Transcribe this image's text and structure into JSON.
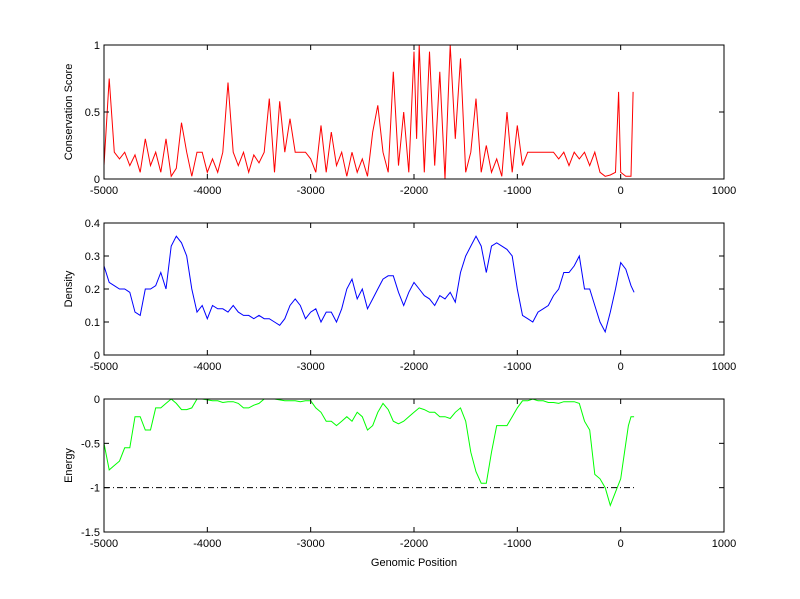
{
  "chart_data": [
    {
      "type": "line",
      "title": "",
      "xlabel": "",
      "ylabel": "Conservation Score",
      "xlim": [
        -5000,
        1000
      ],
      "ylim": [
        0,
        1
      ],
      "xticks": [
        -5000,
        -4000,
        -3000,
        -2000,
        -1000,
        0,
        1000
      ],
      "yticks": [
        0,
        0.5,
        1
      ],
      "ytick_labels": [
        "0",
        "0.5",
        "1"
      ],
      "color": "#ff0000",
      "series": [
        {
          "name": "conservation",
          "x": [
            -5000,
            -4950,
            -4900,
            -4850,
            -4800,
            -4750,
            -4700,
            -4650,
            -4600,
            -4550,
            -4500,
            -4450,
            -4400,
            -4350,
            -4300,
            -4250,
            -4200,
            -4150,
            -4100,
            -4050,
            -4000,
            -3950,
            -3900,
            -3850,
            -3800,
            -3750,
            -3700,
            -3650,
            -3600,
            -3550,
            -3500,
            -3450,
            -3400,
            -3350,
            -3300,
            -3250,
            -3200,
            -3150,
            -3100,
            -3050,
            -3000,
            -2950,
            -2900,
            -2850,
            -2800,
            -2750,
            -2700,
            -2650,
            -2600,
            -2550,
            -2500,
            -2450,
            -2400,
            -2350,
            -2300,
            -2250,
            -2200,
            -2150,
            -2100,
            -2050,
            -2000,
            -1975,
            -1950,
            -1900,
            -1850,
            -1800,
            -1750,
            -1700,
            -1650,
            -1600,
            -1550,
            -1500,
            -1450,
            -1400,
            -1350,
            -1300,
            -1250,
            -1200,
            -1150,
            -1100,
            -1050,
            -1000,
            -950,
            -900,
            -850,
            -800,
            -750,
            -700,
            -650,
            -600,
            -550,
            -500,
            -450,
            -400,
            -350,
            -300,
            -250,
            -200,
            -150,
            -100,
            -50,
            -20,
            0,
            50,
            100,
            120
          ],
          "y": [
            0.1,
            0.75,
            0.2,
            0.15,
            0.2,
            0.1,
            0.18,
            0.05,
            0.3,
            0.1,
            0.2,
            0.05,
            0.3,
            0.02,
            0.08,
            0.42,
            0.2,
            0.02,
            0.2,
            0.2,
            0.05,
            0.15,
            0.05,
            0.2,
            0.72,
            0.2,
            0.1,
            0.2,
            0.05,
            0.18,
            0.12,
            0.2,
            0.6,
            0.05,
            0.58,
            0.2,
            0.45,
            0.2,
            0.2,
            0.2,
            0.15,
            0.05,
            0.4,
            0.05,
            0.35,
            0.1,
            0.2,
            0.02,
            0.2,
            0.05,
            0.15,
            0.02,
            0.35,
            0.55,
            0.2,
            0.05,
            0.8,
            0.1,
            0.5,
            0.05,
            0.95,
            0.3,
            1.0,
            0.05,
            0.95,
            0.1,
            0.8,
            0.0,
            1.0,
            0.3,
            0.9,
            0.05,
            0.2,
            0.6,
            0.05,
            0.25,
            0.05,
            0.15,
            0.02,
            0.5,
            0.05,
            0.4,
            0.1,
            0.2,
            0.2,
            0.2,
            0.2,
            0.2,
            0.2,
            0.15,
            0.2,
            0.1,
            0.2,
            0.15,
            0.2,
            0.1,
            0.2,
            0.05,
            0.02,
            0.03,
            0.05,
            0.65,
            0.05,
            0.02,
            0.02,
            0.65
          ]
        }
      ]
    },
    {
      "type": "line",
      "title": "",
      "xlabel": "",
      "ylabel": "Density",
      "xlim": [
        -5000,
        1000
      ],
      "ylim": [
        0,
        0.4
      ],
      "xticks": [
        -5000,
        -4000,
        -3000,
        -2000,
        -1000,
        0,
        1000
      ],
      "yticks": [
        0,
        0.1,
        0.2,
        0.3,
        0.4
      ],
      "ytick_labels": [
        "0",
        "0.1",
        "0.2",
        "0.3",
        "0.4"
      ],
      "color": "#0000ff",
      "series": [
        {
          "name": "density",
          "x": [
            -5000,
            -4950,
            -4900,
            -4850,
            -4800,
            -4750,
            -4700,
            -4650,
            -4600,
            -4550,
            -4500,
            -4450,
            -4400,
            -4350,
            -4300,
            -4250,
            -4200,
            -4150,
            -4100,
            -4050,
            -4000,
            -3950,
            -3900,
            -3850,
            -3800,
            -3750,
            -3700,
            -3650,
            -3600,
            -3550,
            -3500,
            -3450,
            -3400,
            -3350,
            -3300,
            -3250,
            -3200,
            -3150,
            -3100,
            -3050,
            -3000,
            -2950,
            -2900,
            -2850,
            -2800,
            -2750,
            -2700,
            -2650,
            -2600,
            -2550,
            -2500,
            -2450,
            -2400,
            -2350,
            -2300,
            -2250,
            -2200,
            -2150,
            -2100,
            -2050,
            -2000,
            -1950,
            -1900,
            -1850,
            -1800,
            -1750,
            -1700,
            -1650,
            -1600,
            -1550,
            -1500,
            -1450,
            -1400,
            -1350,
            -1300,
            -1250,
            -1200,
            -1150,
            -1100,
            -1050,
            -1000,
            -950,
            -900,
            -850,
            -800,
            -750,
            -700,
            -650,
            -600,
            -550,
            -500,
            -450,
            -400,
            -350,
            -300,
            -250,
            -200,
            -150,
            -100,
            -50,
            0,
            50,
            100,
            130
          ],
          "y": [
            0.27,
            0.22,
            0.21,
            0.2,
            0.2,
            0.19,
            0.13,
            0.12,
            0.2,
            0.2,
            0.21,
            0.25,
            0.2,
            0.33,
            0.36,
            0.34,
            0.3,
            0.2,
            0.13,
            0.15,
            0.11,
            0.15,
            0.14,
            0.14,
            0.13,
            0.15,
            0.13,
            0.12,
            0.12,
            0.11,
            0.12,
            0.11,
            0.11,
            0.1,
            0.09,
            0.11,
            0.15,
            0.17,
            0.15,
            0.11,
            0.13,
            0.14,
            0.1,
            0.13,
            0.13,
            0.1,
            0.14,
            0.2,
            0.23,
            0.17,
            0.2,
            0.14,
            0.17,
            0.2,
            0.23,
            0.24,
            0.24,
            0.19,
            0.15,
            0.19,
            0.22,
            0.2,
            0.18,
            0.17,
            0.15,
            0.18,
            0.17,
            0.19,
            0.16,
            0.25,
            0.3,
            0.33,
            0.36,
            0.33,
            0.25,
            0.33,
            0.34,
            0.33,
            0.32,
            0.3,
            0.2,
            0.12,
            0.11,
            0.1,
            0.13,
            0.14,
            0.15,
            0.18,
            0.2,
            0.25,
            0.25,
            0.27,
            0.3,
            0.2,
            0.2,
            0.15,
            0.1,
            0.07,
            0.13,
            0.2,
            0.28,
            0.26,
            0.21,
            0.19
          ]
        }
      ]
    },
    {
      "type": "line",
      "title": "",
      "xlabel": "Genomic Position",
      "ylabel": "Energy",
      "xlim": [
        -5000,
        1000
      ],
      "ylim": [
        -1.5,
        0
      ],
      "xticks": [
        -5000,
        -4000,
        -3000,
        -2000,
        -1000,
        0,
        1000
      ],
      "yticks": [
        -1.5,
        -1,
        -0.5,
        0
      ],
      "ytick_labels": [
        "-1.5",
        "-1",
        "-0.5",
        "0"
      ],
      "color": "#00ff00",
      "reference_line": {
        "y": -1,
        "x": [
          -5000,
          130
        ],
        "style": "dash-dot",
        "color": "#000000"
      },
      "series": [
        {
          "name": "energy",
          "x": [
            -5000,
            -4950,
            -4900,
            -4850,
            -4800,
            -4750,
            -4700,
            -4650,
            -4600,
            -4550,
            -4500,
            -4450,
            -4400,
            -4350,
            -4300,
            -4250,
            -4200,
            -4150,
            -4100,
            -4050,
            -4000,
            -3950,
            -3900,
            -3850,
            -3800,
            -3750,
            -3700,
            -3650,
            -3600,
            -3550,
            -3500,
            -3450,
            -3400,
            -3350,
            -3300,
            -3250,
            -3200,
            -3150,
            -3100,
            -3050,
            -3000,
            -2950,
            -2900,
            -2850,
            -2800,
            -2750,
            -2700,
            -2650,
            -2600,
            -2550,
            -2500,
            -2450,
            -2400,
            -2350,
            -2300,
            -2250,
            -2200,
            -2150,
            -2100,
            -2050,
            -2000,
            -1950,
            -1900,
            -1850,
            -1800,
            -1750,
            -1700,
            -1650,
            -1600,
            -1550,
            -1500,
            -1450,
            -1400,
            -1350,
            -1300,
            -1250,
            -1200,
            -1150,
            -1100,
            -1050,
            -1000,
            -950,
            -900,
            -850,
            -800,
            -750,
            -700,
            -650,
            -600,
            -550,
            -500,
            -450,
            -400,
            -350,
            -300,
            -250,
            -200,
            -150,
            -100,
            -50,
            0,
            50,
            75,
            100,
            130
          ],
          "y": [
            -0.5,
            -0.8,
            -0.75,
            -0.7,
            -0.55,
            -0.55,
            -0.2,
            -0.2,
            -0.35,
            -0.35,
            -0.1,
            -0.1,
            -0.05,
            0,
            -0.05,
            -0.12,
            -0.12,
            -0.1,
            0,
            0,
            -0.01,
            -0.02,
            -0.02,
            -0.04,
            -0.03,
            -0.03,
            -0.05,
            -0.1,
            -0.1,
            -0.07,
            -0.05,
            0,
            0,
            0,
            -0.01,
            -0.02,
            -0.02,
            -0.02,
            -0.03,
            -0.02,
            -0.02,
            -0.1,
            -0.15,
            -0.25,
            -0.25,
            -0.3,
            -0.25,
            -0.2,
            -0.25,
            -0.15,
            -0.2,
            -0.35,
            -0.3,
            -0.15,
            -0.05,
            -0.12,
            -0.25,
            -0.28,
            -0.25,
            -0.2,
            -0.15,
            -0.1,
            -0.12,
            -0.15,
            -0.15,
            -0.2,
            -0.2,
            -0.22,
            -0.15,
            -0.1,
            -0.25,
            -0.6,
            -0.82,
            -0.95,
            -0.95,
            -0.6,
            -0.3,
            -0.3,
            -0.3,
            -0.2,
            -0.1,
            -0.02,
            -0.02,
            0,
            -0.02,
            -0.02,
            -0.04,
            -0.04,
            -0.05,
            -0.03,
            -0.03,
            -0.03,
            -0.05,
            -0.25,
            -0.35,
            -0.85,
            -0.9,
            -1.0,
            -1.2,
            -1.05,
            -0.9,
            -0.5,
            -0.3,
            -0.2,
            -0.2
          ]
        }
      ]
    }
  ]
}
